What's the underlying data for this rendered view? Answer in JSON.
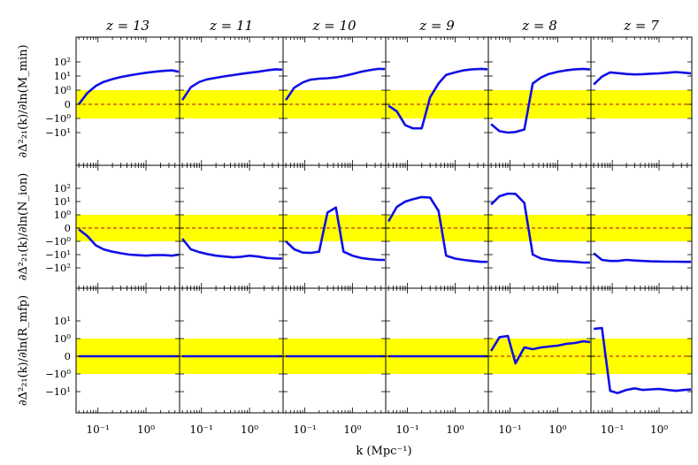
{
  "chart_data": {
    "type": "line",
    "figure": "grid of 3 rows x 6 columns of small line plots, shared log x-axis and symlog y-axis",
    "column_titles": [
      "z = 13",
      "z = 11",
      "z = 10",
      "z = 9",
      "z = 8",
      "z = 7"
    ],
    "row_ylabels": [
      "∂Δ²₂₁(k)/∂ln(M_min)",
      "∂Δ²₂₁(k)/∂ln(N_ion)",
      "∂Δ²₂₁(k)/∂ln(R_mfp)"
    ],
    "xlabel": "k (Mpc⁻¹)",
    "xscale": "log",
    "xlim": [
      0.035,
      5.0
    ],
    "xtick_labels": [
      "10⁻¹",
      "10⁰"
    ],
    "yscale": "symlog",
    "ytick_labels_by_row": [
      [
        "10²",
        "10¹",
        "10⁰",
        "0",
        "−10⁰",
        "−10¹"
      ],
      [
        "10²",
        "10¹",
        "10⁰",
        "0",
        "−10⁰",
        "−10¹",
        "−10²"
      ],
      [
        "10¹",
        "10⁰",
        "0",
        "−10⁰",
        "−10¹"
      ]
    ],
    "ylim_by_row": [
      [
        -40,
        110
      ],
      [
        -140,
        110
      ],
      [
        -14,
        18
      ]
    ],
    "shaded_band": {
      "ymin": -1,
      "ymax": 1,
      "color": "#ffff00"
    },
    "reference_line": {
      "y": 0,
      "style": "dashed",
      "color": "#c0392b"
    },
    "series_color": "#1010e6",
    "x": [
      0.04,
      0.06,
      0.09,
      0.13,
      0.2,
      0.3,
      0.45,
      0.65,
      1.0,
      1.5,
      2.3,
      3.5,
      4.8
    ],
    "rows": [
      [
        [
          0.0,
          0.8,
          2.0,
          3.8,
          6.0,
          8.5,
          11.0,
          13.5,
          17.0,
          20.0,
          23.0,
          25.0,
          20.0
        ],
        [
          0.3,
          1.6,
          3.8,
          5.8,
          7.5,
          9.5,
          11.5,
          14.0,
          17.0,
          20.0,
          25.0,
          30.0,
          28.0
        ],
        [
          0.3,
          1.5,
          3.5,
          5.5,
          6.5,
          7.0,
          8.0,
          10.0,
          14.0,
          20.0,
          26.0,
          32.0,
          31.0
        ],
        [
          -0.1,
          -0.5,
          -3.0,
          -5.0,
          -5.0,
          0.5,
          3.0,
          12.0,
          18.0,
          25.0,
          30.0,
          32.0,
          30.0
        ],
        [
          -2.5,
          -8.0,
          -10.0,
          -9.0,
          -6.0,
          3.0,
          8.0,
          14.0,
          20.0,
          25.0,
          30.0,
          32.0,
          29.0
        ],
        [
          2.5,
          9.0,
          18.0,
          16.0,
          14.0,
          13.0,
          13.5,
          14.5,
          15.5,
          17.0,
          19.0,
          17.0,
          15.5
        ]
      ],
      [
        [
          -0.1,
          -0.6,
          -2.0,
          -4.0,
          -6.0,
          -8.0,
          -10.0,
          -11.0,
          -12.0,
          -11.0,
          -11.0,
          -12.0,
          -10.0
        ],
        [
          -0.8,
          -4.0,
          -6.5,
          -9.0,
          -12.0,
          -14.0,
          -16.0,
          -15.0,
          -12.0,
          -14.0,
          -18.0,
          -20.0,
          -20.0
        ],
        [
          -1.0,
          -4.0,
          -7.0,
          -7.5,
          -6.0,
          1.5,
          3.5,
          -6.0,
          -12.0,
          -18.0,
          -22.0,
          -25.0,
          -25.0
        ],
        [
          0.5,
          4.0,
          10.0,
          15.0,
          22.0,
          20.0,
          2.0,
          -12.0,
          -20.0,
          -25.0,
          -30.0,
          -35.0,
          -35.0
        ],
        [
          6.0,
          25.0,
          40.0,
          38.0,
          8.0,
          -10.0,
          -20.0,
          -25.0,
          -30.0,
          -32.0,
          -35.0,
          -40.0,
          -40.0
        ],
        [
          -8.0,
          -25.0,
          -30.0,
          -30.0,
          -25.0,
          -28.0,
          -30.0,
          -32.0,
          -33.0,
          -34.0,
          -34.0,
          -35.0,
          -35.0
        ]
      ],
      [
        [
          0.0,
          0.0,
          0.0,
          0.0,
          0.0,
          0.0,
          0.0,
          0.0,
          0.0,
          0.0,
          0.0,
          0.0,
          0.0
        ],
        [
          0.0,
          0.0,
          0.0,
          0.0,
          0.0,
          0.0,
          0.0,
          0.0,
          0.0,
          0.0,
          0.0,
          0.0,
          0.0
        ],
        [
          0.0,
          0.0,
          0.0,
          0.0,
          0.0,
          0.0,
          0.0,
          0.0,
          0.0,
          0.0,
          0.0,
          0.0,
          0.0
        ],
        [
          0.0,
          0.0,
          0.0,
          0.0,
          0.0,
          0.0,
          0.0,
          0.0,
          0.0,
          0.0,
          0.0,
          0.0,
          0.0
        ],
        [
          0.3,
          1.2,
          1.4,
          -0.4,
          0.5,
          0.4,
          0.5,
          0.55,
          0.6,
          0.7,
          0.75,
          0.85,
          0.8
        ],
        [
          3.5,
          4.0,
          -9.0,
          -12.0,
          -8.0,
          -6.5,
          -8.0,
          -7.5,
          -7.0,
          -8.0,
          -9.0,
          -8.0,
          -7.5
        ]
      ]
    ]
  }
}
